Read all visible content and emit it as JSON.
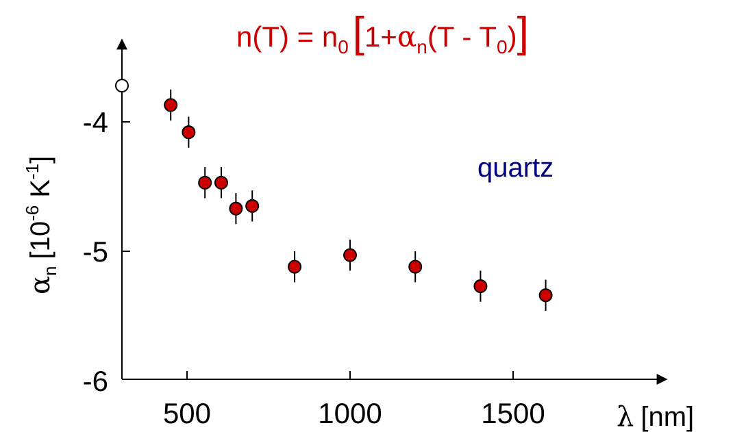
{
  "chart_data": {
    "type": "scatter",
    "title": {
      "base": "n(T) = n",
      "base_sub": "0",
      "bracket_open": "[",
      "one_plus": "1+",
      "alpha": "α",
      "alpha_sub": "n",
      "paren": "(T - T",
      "t0_sub": "0",
      "paren_close": ")",
      "bracket_close": "]"
    },
    "annotation": "quartz",
    "xlabel": {
      "lambda": "λ",
      "unit": "[nm]"
    },
    "ylabel": {
      "alpha": "α",
      "alpha_sub": "n",
      "bracket": "[10",
      "exp": "-6",
      "unit": " K",
      "unit_exp": "-1",
      "close": "]"
    },
    "x_ticks": [
      500,
      1000,
      1500
    ],
    "y_ticks": [
      -4,
      -5,
      -6
    ],
    "xlim": [
      300,
      2000
    ],
    "ylim": [
      -6,
      -3.55
    ],
    "series": [
      {
        "marker": "filled",
        "color": "#cc0000",
        "points": [
          {
            "x": 450,
            "y": -3.87,
            "err": 0.12
          },
          {
            "x": 505,
            "y": -4.08,
            "err": 0.12
          },
          {
            "x": 555,
            "y": -4.47,
            "err": 0.12
          },
          {
            "x": 605,
            "y": -4.47,
            "err": 0.12
          },
          {
            "x": 650,
            "y": -4.67,
            "err": 0.12
          },
          {
            "x": 700,
            "y": -4.65,
            "err": 0.12
          },
          {
            "x": 830,
            "y": -5.12,
            "err": 0.12
          },
          {
            "x": 1000,
            "y": -5.03,
            "err": 0.12
          },
          {
            "x": 1200,
            "y": -5.12,
            "err": 0.12
          },
          {
            "x": 1400,
            "y": -5.27,
            "err": 0.12
          },
          {
            "x": 1600,
            "y": -5.34,
            "err": 0.12
          }
        ]
      },
      {
        "marker": "open",
        "color": "#000000",
        "points": [
          {
            "x": 300,
            "y": -3.72
          }
        ]
      }
    ],
    "colors": {
      "title": "#cc0000",
      "annotation": "#000080",
      "marker_fill": "#cc0000",
      "axis": "#000000"
    },
    "grid": false,
    "legend": "none"
  }
}
